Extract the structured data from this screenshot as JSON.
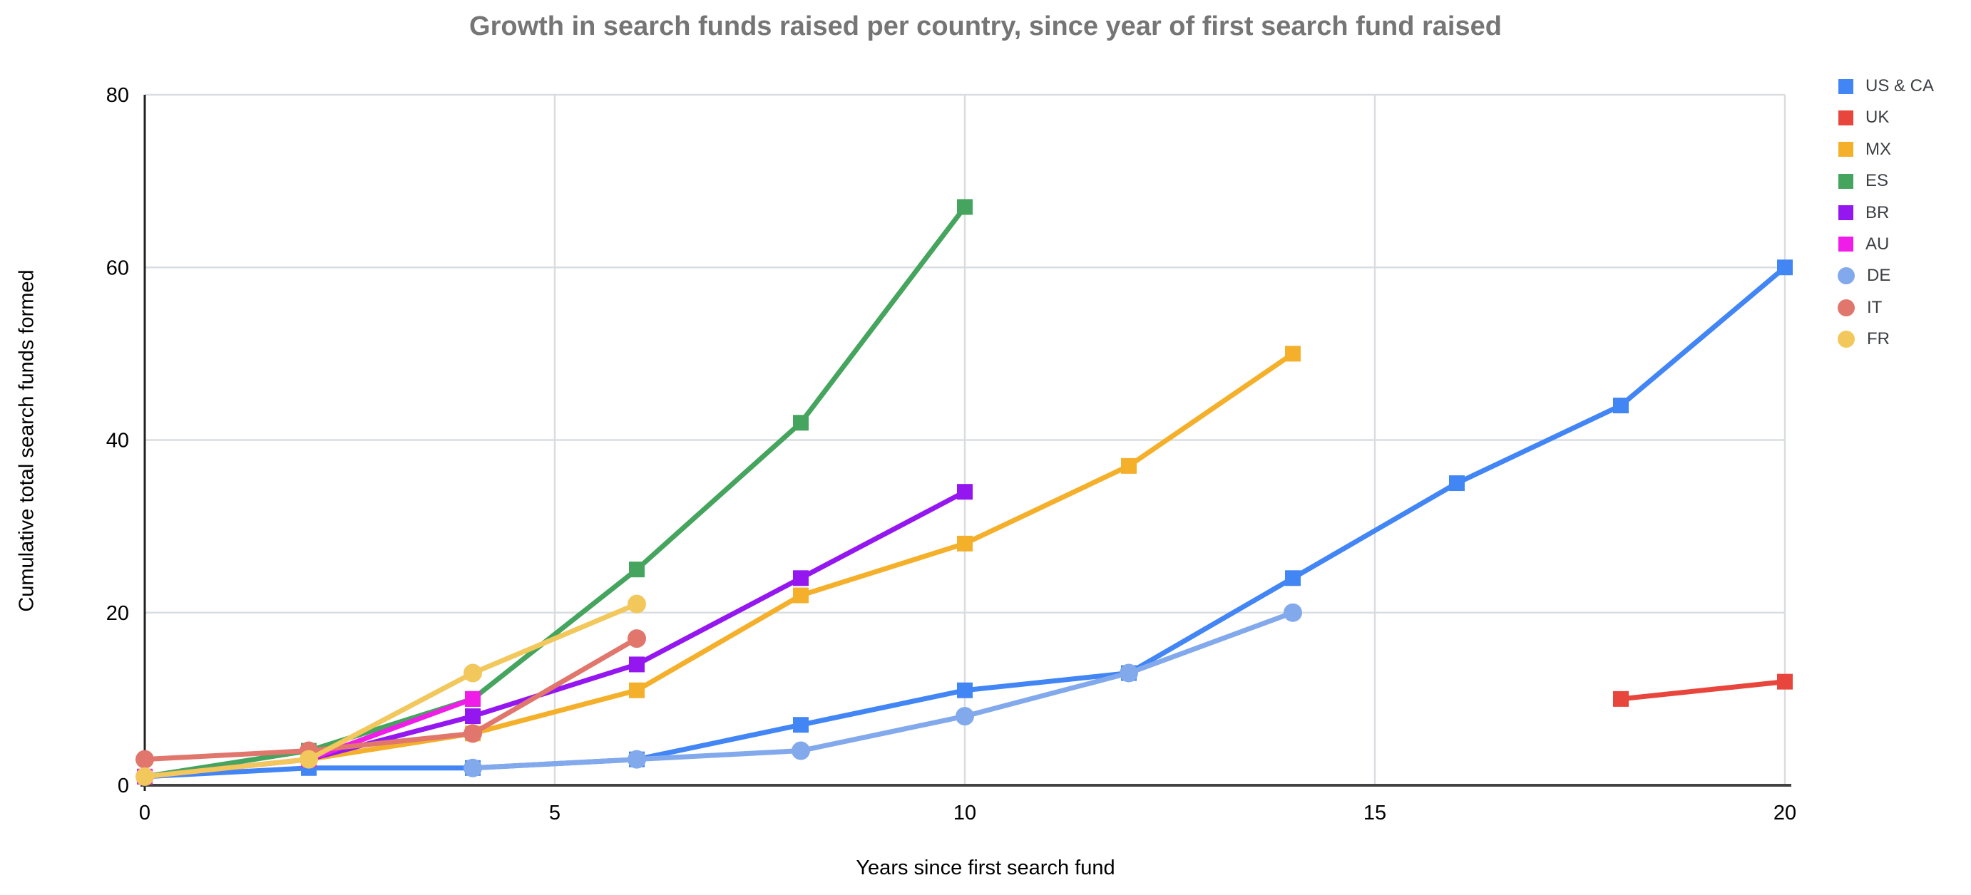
{
  "title": "Growth in search funds raised per country, since year of first search fund raised",
  "chart_data": {
    "type": "line",
    "title": "Growth in search funds raised per country, since year of first search fund raised",
    "xlabel": "Years since first search fund",
    "ylabel": "Cumulative total search funds formed",
    "xlim": [
      0,
      20
    ],
    "ylim": [
      0,
      80
    ],
    "x_ticks": [
      0,
      5,
      10,
      15,
      20
    ],
    "y_ticks": [
      0,
      20,
      40,
      60,
      80
    ],
    "grid": true,
    "legend_position": "right",
    "series": [
      {
        "name": "US & CA",
        "color": "#4285F4",
        "marker": "square",
        "points": [
          [
            0,
            1
          ],
          [
            2,
            2
          ],
          [
            4,
            2
          ],
          [
            6,
            3
          ],
          [
            8,
            7
          ],
          [
            10,
            11
          ],
          [
            12,
            13
          ],
          [
            14,
            24
          ],
          [
            16,
            35
          ],
          [
            18,
            44
          ],
          [
            20,
            60
          ]
        ]
      },
      {
        "name": "UK",
        "color": "#E8453C",
        "marker": "square",
        "points": [
          [
            18,
            10
          ],
          [
            20,
            12
          ]
        ]
      },
      {
        "name": "MX",
        "color": "#F4B02A",
        "marker": "square",
        "points": [
          [
            2,
            3
          ],
          [
            4,
            6
          ],
          [
            6,
            11
          ],
          [
            8,
            22
          ],
          [
            10,
            28
          ],
          [
            12,
            37
          ],
          [
            14,
            50
          ]
        ]
      },
      {
        "name": "ES",
        "color": "#45A45D",
        "marker": "square",
        "points": [
          [
            0,
            1
          ],
          [
            2,
            4
          ],
          [
            4,
            10
          ],
          [
            6,
            25
          ],
          [
            8,
            42
          ],
          [
            10,
            67
          ]
        ]
      },
      {
        "name": "BR",
        "color": "#9417F0",
        "marker": "square",
        "points": [
          [
            2,
            3
          ],
          [
            4,
            8
          ],
          [
            6,
            14
          ],
          [
            8,
            24
          ],
          [
            10,
            34
          ]
        ]
      },
      {
        "name": "AU",
        "color": "#F01DE8",
        "marker": "square",
        "points": [
          [
            0,
            1
          ],
          [
            2,
            3
          ],
          [
            4,
            10
          ]
        ]
      },
      {
        "name": "DE",
        "color": "#82A9EC",
        "marker": "circle",
        "points": [
          [
            4,
            2
          ],
          [
            6,
            3
          ],
          [
            8,
            4
          ],
          [
            10,
            8
          ],
          [
            12,
            13
          ],
          [
            14,
            20
          ]
        ]
      },
      {
        "name": "IT",
        "color": "#E0766C",
        "marker": "circle",
        "points": [
          [
            0,
            3
          ],
          [
            2,
            4
          ],
          [
            4,
            6
          ],
          [
            6,
            17
          ]
        ]
      },
      {
        "name": "FR",
        "color": "#F2C75C",
        "marker": "circle",
        "points": [
          [
            0,
            1
          ],
          [
            2,
            3
          ],
          [
            4,
            13
          ],
          [
            6,
            21
          ]
        ]
      }
    ],
    "style": {
      "gridline_color": "#dadde0",
      "x_axis_color": "#424242",
      "y_axis_color": "#212121",
      "title_color": "#757575",
      "tick_label_color": "#000000"
    }
  }
}
